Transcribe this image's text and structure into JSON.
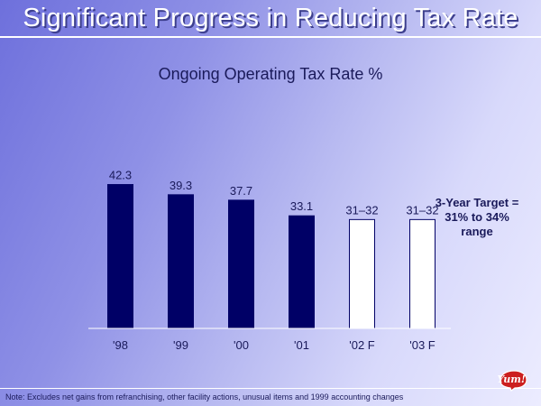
{
  "slide": {
    "title": "Significant Progress in Reducing Tax Rate",
    "target_note": [
      "3-Year Target =",
      "31% to 34%",
      "range"
    ],
    "footnote": "Note: Excludes net gains from refranchising, other facility actions, unusual items and 1999 accounting changes",
    "logo_text": "Yum!"
  },
  "colors": {
    "actual_bar": "#000066",
    "forecast_bar": "#ffffff",
    "bar_outline": "#000066",
    "text": "#1a1a5a",
    "logo": "#cc1f1f"
  },
  "chart_data": {
    "type": "bar",
    "title": "Ongoing Operating Tax Rate %",
    "xlabel": "",
    "ylabel": "",
    "ylim": [
      0,
      50
    ],
    "grid": false,
    "categories": [
      "'98",
      "'99",
      "'00",
      "'01",
      "'02 F",
      "'03 F"
    ],
    "values": [
      42.3,
      39.3,
      37.7,
      33.1,
      32,
      32
    ],
    "data_labels": [
      "42.3",
      "39.3",
      "37.7",
      "33.1",
      "31–32",
      "31–32"
    ],
    "forecast": [
      false,
      false,
      false,
      false,
      true,
      true
    ]
  }
}
